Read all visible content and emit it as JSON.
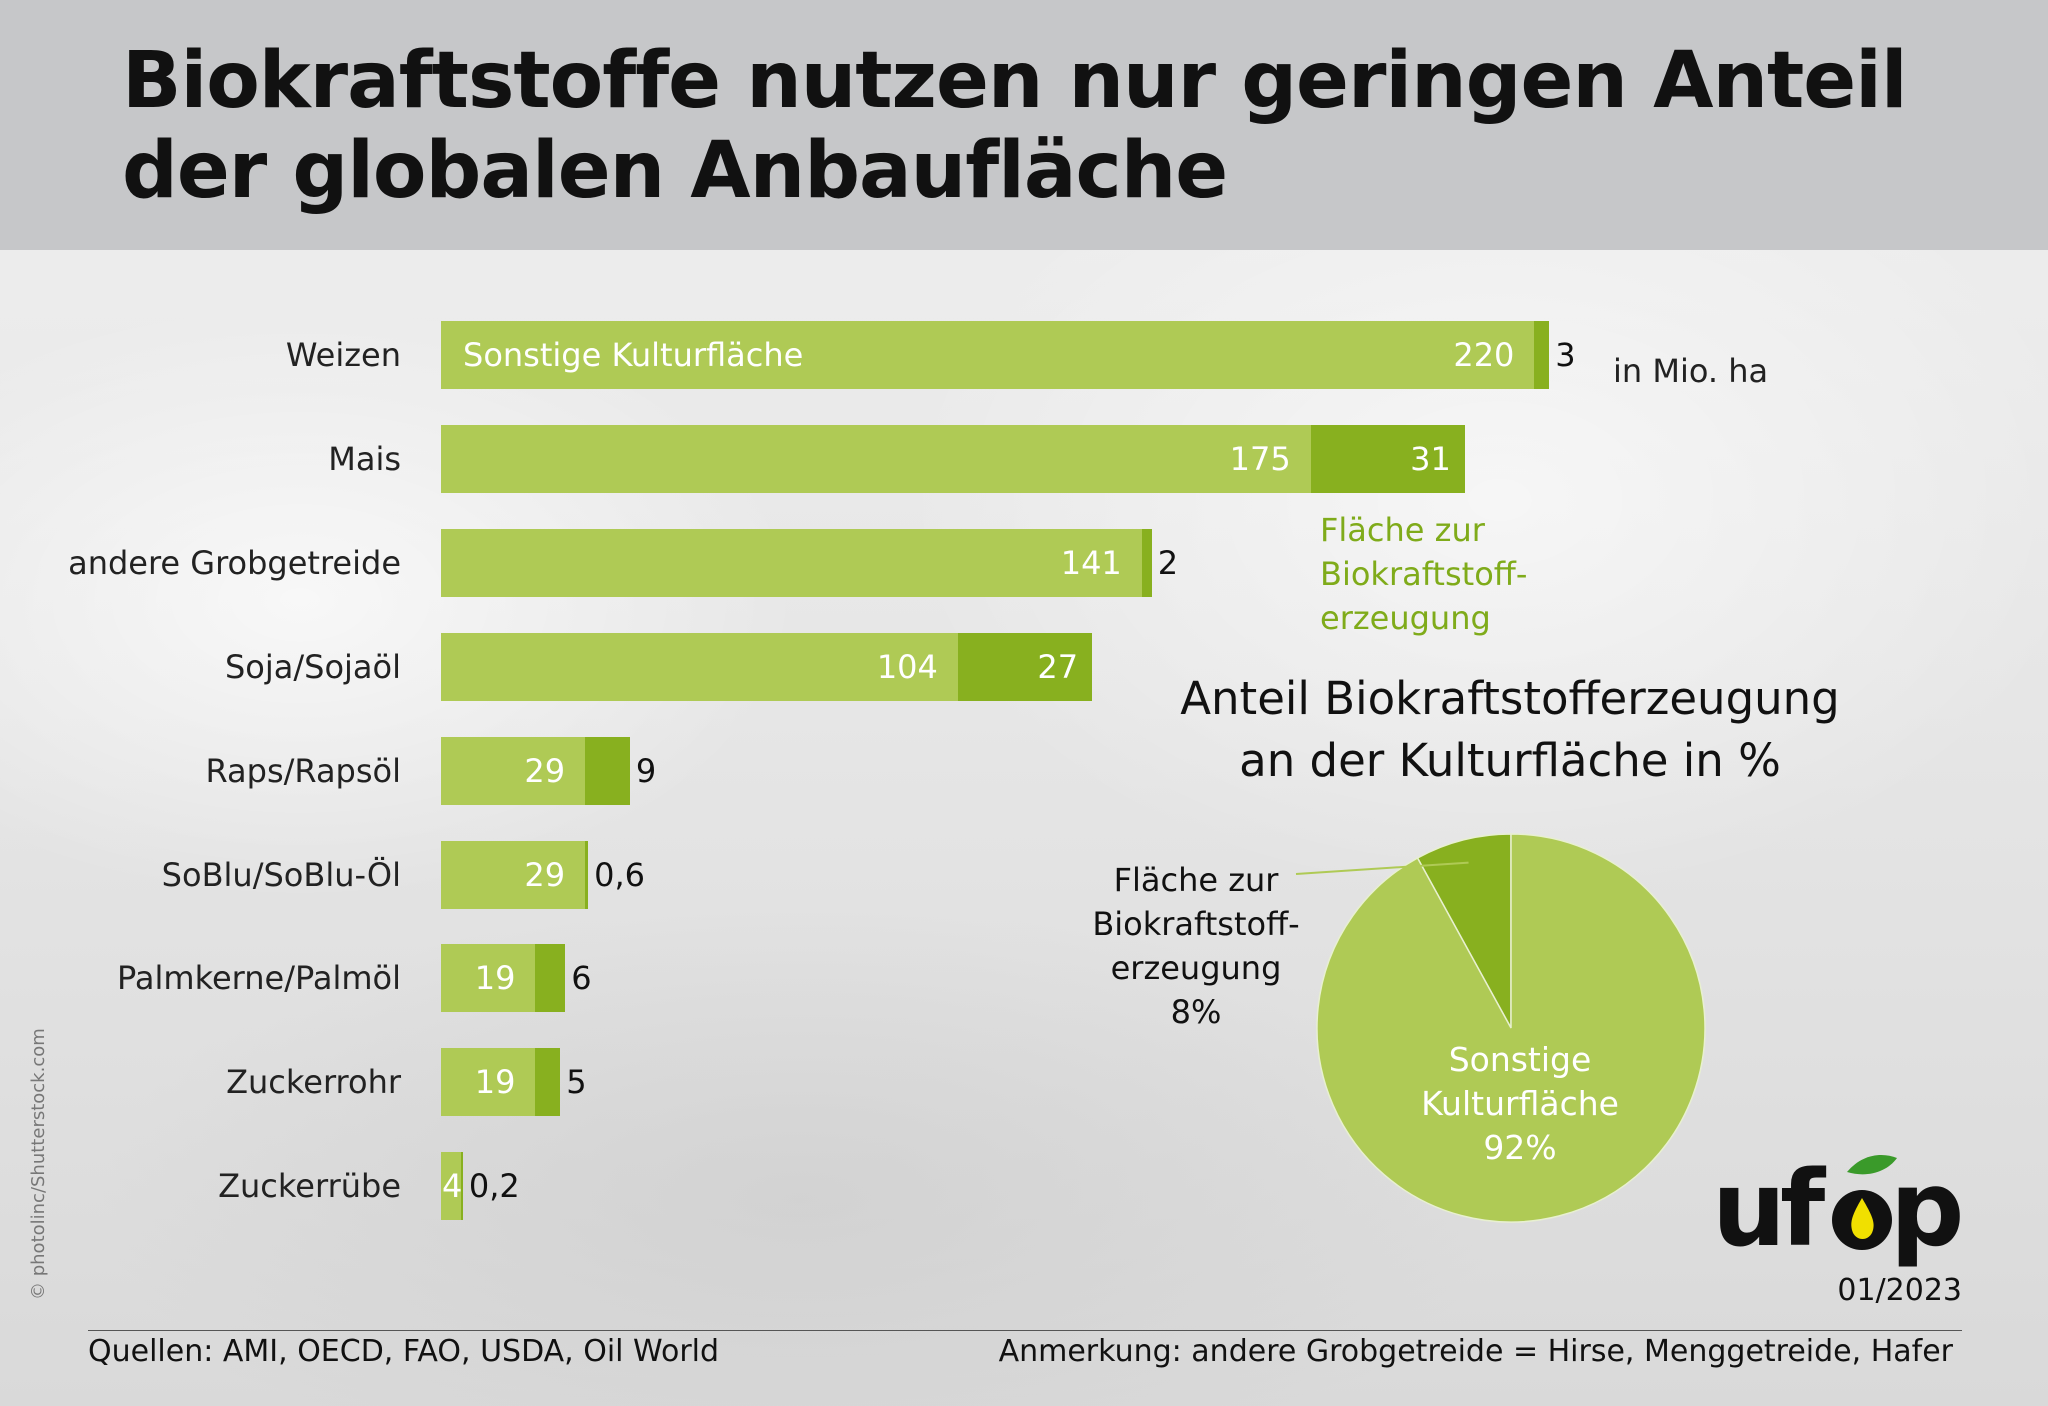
{
  "header": {
    "title_line1": "Biokraftstoffe nutzen nur geringen Anteil",
    "title_line2": "der globalen Anbaufläche"
  },
  "colors": {
    "other": "#afca55",
    "biofuel": "#88b01f",
    "header": "#c6c7c9"
  },
  "chart_data": [
    {
      "type": "bar",
      "orientation": "horizontal",
      "stacked": true,
      "unit_label": "in Mio. ha",
      "categories": [
        "Weizen",
        "Mais",
        "andere Grobgetreide",
        "Soja/Sojaöl",
        "Raps/Rapsöl",
        "SoBlu/SoBlu-Öl",
        "Palmkerne/Palmöl",
        "Zuckerrohr",
        "Zuckerrübe"
      ],
      "series": [
        {
          "name": "Sonstige Kulturfläche",
          "values": [
            220,
            175,
            141,
            104,
            29,
            29,
            19,
            19,
            4
          ],
          "labels": [
            "220",
            "175",
            "141",
            "104",
            "29",
            "29",
            "19",
            "19",
            "4"
          ]
        },
        {
          "name": "Fläche zur Biokraftstoff-erzeugung",
          "values": [
            3,
            31,
            2,
            27,
            9,
            0.6,
            6,
            5,
            0.2
          ],
          "labels": [
            "3",
            "31",
            "2",
            "27",
            "9",
            "0,6",
            "6",
            "5",
            "0,2"
          ]
        }
      ],
      "legend_other": "Sonstige Kulturfläche",
      "legend_biofuel_lines": [
        "Fläche zur",
        "Biokraftstoff-",
        "erzeugung"
      ]
    },
    {
      "type": "pie",
      "title_line1": "Anteil Biokraftstofferzeugung",
      "title_line2": "an der Kulturfläche in %",
      "slices": [
        {
          "name": "Fläche zur Biokraftstofferzeugung",
          "value": 8,
          "label_lines": [
            "Fläche zur",
            "Biokraftstoff-",
            "erzeugung",
            "8%"
          ]
        },
        {
          "name": "Sonstige Kulturfläche",
          "value": 92,
          "label_lines": [
            "Sonstige",
            "Kulturfläche",
            "92%"
          ]
        }
      ]
    }
  ],
  "footer": {
    "sources": "Quellen:  AMI, OECD, FAO, USDA, Oil World",
    "note": "Anmerkung:  andere Grobgetreide = Hirse, Menggetreide, Hafer",
    "date": "01/2023",
    "copyright": "© photolinc/Shutterstock.com",
    "logo": "ufop"
  }
}
